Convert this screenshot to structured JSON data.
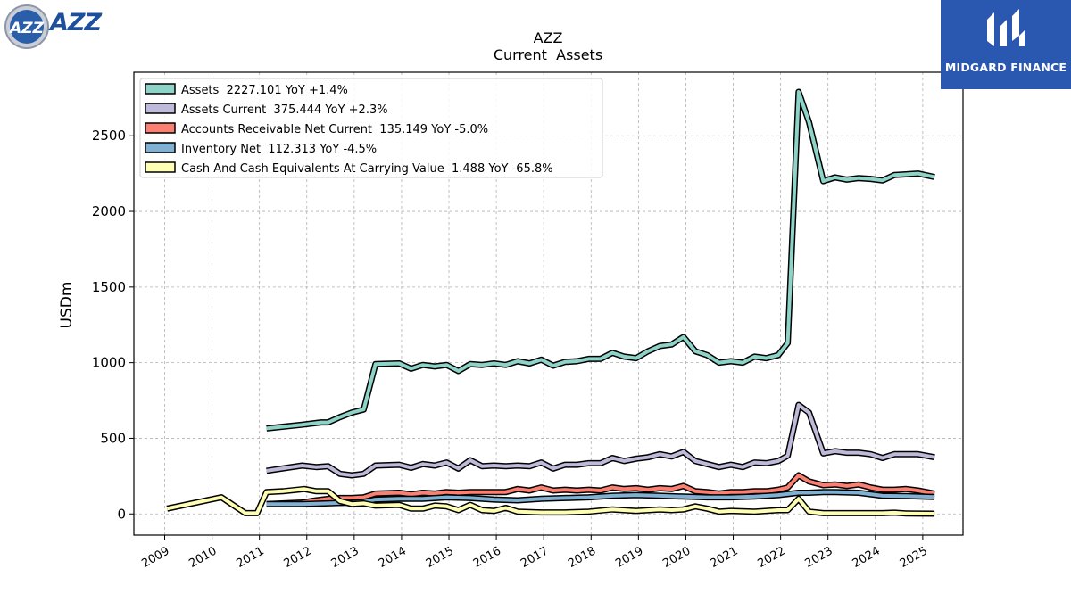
{
  "branding": {
    "company_logo_text": "AZZ",
    "company_logo_badge_text": "AZZ",
    "watermark_text": "MIDGARD FINANCE"
  },
  "colors": {
    "assets": "#8dd3c7",
    "assets_current": "#bebada",
    "receivables": "#fb8072",
    "inventory": "#80b1d3",
    "cash": "#ffffb3",
    "outline": "#000000",
    "grid": "#b0b0b0",
    "brand_blue": "#2a57b0",
    "azz_blue": "#1d4f9c"
  },
  "chart_data": {
    "type": "line",
    "title": "AZZ",
    "subtitle": "Current  Assets",
    "xlabel": "",
    "ylabel": "USDm",
    "xlim": [
      2008.35,
      2025.85
    ],
    "ylim": [
      -140,
      2920
    ],
    "yticks": [
      0,
      500,
      1000,
      1500,
      2000,
      2500
    ],
    "xticks": [
      "2009",
      "2010",
      "2011",
      "2012",
      "2013",
      "2014",
      "2015",
      "2016",
      "2017",
      "2018",
      "2019",
      "2020",
      "2021",
      "2022",
      "2023",
      "2024",
      "2025"
    ],
    "grid": true,
    "legend_position": "top-left",
    "legend": [
      "Assets  2227.101 YoY +1.4%",
      "Assets Current  375.444 YoY +2.3%",
      "Accounts Receivable Net Current  135.149 YoY -5.0%",
      "Inventory Net  112.313 YoY -4.5%",
      "Cash And Cash Equivalents At Carrying Value  1.488 YoY -65.8%"
    ],
    "series": [
      {
        "name": "Assets",
        "color": "#8dd3c7",
        "points": [
          [
            2011.15,
            565
          ],
          [
            2011.9,
            590
          ],
          [
            2012.3,
            605
          ],
          [
            2012.45,
            605
          ],
          [
            2012.7,
            640
          ],
          [
            2012.95,
            670
          ],
          [
            2013.2,
            690
          ],
          [
            2013.45,
            990
          ],
          [
            2013.95,
            995
          ],
          [
            2014.2,
            960
          ],
          [
            2014.45,
            985
          ],
          [
            2014.7,
            975
          ],
          [
            2014.95,
            985
          ],
          [
            2015.2,
            945
          ],
          [
            2015.45,
            990
          ],
          [
            2015.7,
            985
          ],
          [
            2015.95,
            995
          ],
          [
            2016.2,
            985
          ],
          [
            2016.45,
            1010
          ],
          [
            2016.7,
            995
          ],
          [
            2016.95,
            1020
          ],
          [
            2017.2,
            980
          ],
          [
            2017.45,
            1005
          ],
          [
            2017.7,
            1010
          ],
          [
            2017.95,
            1025
          ],
          [
            2018.2,
            1025
          ],
          [
            2018.45,
            1065
          ],
          [
            2018.7,
            1040
          ],
          [
            2018.95,
            1030
          ],
          [
            2019.2,
            1075
          ],
          [
            2019.45,
            1110
          ],
          [
            2019.7,
            1120
          ],
          [
            2019.95,
            1170
          ],
          [
            2020.2,
            1075
          ],
          [
            2020.45,
            1050
          ],
          [
            2020.7,
            1000
          ],
          [
            2020.95,
            1010
          ],
          [
            2021.2,
            1000
          ],
          [
            2021.45,
            1040
          ],
          [
            2021.7,
            1030
          ],
          [
            2021.95,
            1050
          ],
          [
            2022.15,
            1130
          ],
          [
            2022.38,
            2790
          ],
          [
            2022.6,
            2590
          ],
          [
            2022.9,
            2200
          ],
          [
            2023.15,
            2225
          ],
          [
            2023.4,
            2210
          ],
          [
            2023.65,
            2220
          ],
          [
            2023.9,
            2215
          ],
          [
            2024.15,
            2205
          ],
          [
            2024.4,
            2240
          ],
          [
            2024.9,
            2250
          ],
          [
            2025.25,
            2227
          ]
        ]
      },
      {
        "name": "Assets Current",
        "color": "#bebada",
        "points": [
          [
            2011.15,
            285
          ],
          [
            2011.9,
            320
          ],
          [
            2012.2,
            310
          ],
          [
            2012.45,
            315
          ],
          [
            2012.7,
            265
          ],
          [
            2012.95,
            255
          ],
          [
            2013.2,
            265
          ],
          [
            2013.45,
            320
          ],
          [
            2013.95,
            325
          ],
          [
            2014.2,
            305
          ],
          [
            2014.45,
            330
          ],
          [
            2014.7,
            320
          ],
          [
            2014.95,
            340
          ],
          [
            2015.2,
            300
          ],
          [
            2015.45,
            355
          ],
          [
            2015.7,
            315
          ],
          [
            2015.95,
            320
          ],
          [
            2016.2,
            315
          ],
          [
            2016.45,
            320
          ],
          [
            2016.7,
            315
          ],
          [
            2016.95,
            340
          ],
          [
            2017.2,
            300
          ],
          [
            2017.45,
            325
          ],
          [
            2017.7,
            325
          ],
          [
            2017.95,
            335
          ],
          [
            2018.2,
            335
          ],
          [
            2018.45,
            370
          ],
          [
            2018.7,
            350
          ],
          [
            2018.95,
            365
          ],
          [
            2019.2,
            375
          ],
          [
            2019.45,
            395
          ],
          [
            2019.7,
            380
          ],
          [
            2019.95,
            410
          ],
          [
            2020.2,
            350
          ],
          [
            2020.45,
            330
          ],
          [
            2020.7,
            310
          ],
          [
            2020.95,
            325
          ],
          [
            2021.2,
            310
          ],
          [
            2021.45,
            340
          ],
          [
            2021.7,
            335
          ],
          [
            2021.95,
            350
          ],
          [
            2022.15,
            385
          ],
          [
            2022.38,
            720
          ],
          [
            2022.6,
            670
          ],
          [
            2022.9,
            400
          ],
          [
            2023.15,
            415
          ],
          [
            2023.4,
            405
          ],
          [
            2023.65,
            405
          ],
          [
            2023.9,
            395
          ],
          [
            2024.15,
            370
          ],
          [
            2024.4,
            395
          ],
          [
            2024.9,
            395
          ],
          [
            2025.25,
            375
          ]
        ]
      },
      {
        "name": "Accounts Receivable Net Current",
        "color": "#fb8072",
        "points": [
          [
            2011.15,
            65
          ],
          [
            2011.9,
            75
          ],
          [
            2012.2,
            90
          ],
          [
            2012.45,
            100
          ],
          [
            2012.7,
            105
          ],
          [
            2012.95,
            105
          ],
          [
            2013.2,
            110
          ],
          [
            2013.45,
            135
          ],
          [
            2013.95,
            140
          ],
          [
            2014.2,
            130
          ],
          [
            2014.45,
            140
          ],
          [
            2014.7,
            135
          ],
          [
            2014.95,
            145
          ],
          [
            2015.2,
            140
          ],
          [
            2015.45,
            145
          ],
          [
            2015.7,
            145
          ],
          [
            2015.95,
            145
          ],
          [
            2016.2,
            145
          ],
          [
            2016.45,
            165
          ],
          [
            2016.7,
            155
          ],
          [
            2016.95,
            175
          ],
          [
            2017.2,
            155
          ],
          [
            2017.45,
            160
          ],
          [
            2017.7,
            155
          ],
          [
            2017.95,
            160
          ],
          [
            2018.2,
            155
          ],
          [
            2018.45,
            175
          ],
          [
            2018.7,
            165
          ],
          [
            2018.95,
            170
          ],
          [
            2019.2,
            160
          ],
          [
            2019.45,
            170
          ],
          [
            2019.7,
            165
          ],
          [
            2019.95,
            185
          ],
          [
            2020.2,
            150
          ],
          [
            2020.45,
            145
          ],
          [
            2020.7,
            135
          ],
          [
            2020.95,
            145
          ],
          [
            2021.2,
            145
          ],
          [
            2021.45,
            150
          ],
          [
            2021.7,
            150
          ],
          [
            2021.95,
            160
          ],
          [
            2022.15,
            175
          ],
          [
            2022.38,
            255
          ],
          [
            2022.6,
            215
          ],
          [
            2022.9,
            190
          ],
          [
            2023.15,
            195
          ],
          [
            2023.4,
            185
          ],
          [
            2023.65,
            195
          ],
          [
            2023.9,
            175
          ],
          [
            2024.15,
            160
          ],
          [
            2024.4,
            160
          ],
          [
            2024.65,
            165
          ],
          [
            2024.9,
            155
          ],
          [
            2025.25,
            135
          ]
        ]
      },
      {
        "name": "Inventory Net",
        "color": "#80b1d3",
        "points": [
          [
            2011.15,
            65
          ],
          [
            2011.9,
            65
          ],
          [
            2012.45,
            70
          ],
          [
            2012.95,
            75
          ],
          [
            2013.2,
            80
          ],
          [
            2013.45,
            95
          ],
          [
            2013.95,
            100
          ],
          [
            2014.45,
            100
          ],
          [
            2014.95,
            110
          ],
          [
            2015.45,
            105
          ],
          [
            2015.95,
            95
          ],
          [
            2016.45,
            90
          ],
          [
            2016.95,
            100
          ],
          [
            2017.45,
            105
          ],
          [
            2017.95,
            110
          ],
          [
            2018.45,
            120
          ],
          [
            2018.95,
            125
          ],
          [
            2019.45,
            120
          ],
          [
            2019.95,
            115
          ],
          [
            2020.45,
            110
          ],
          [
            2020.95,
            110
          ],
          [
            2021.45,
            115
          ],
          [
            2021.95,
            125
          ],
          [
            2022.38,
            140
          ],
          [
            2022.6,
            140
          ],
          [
            2022.9,
            145
          ],
          [
            2023.15,
            145
          ],
          [
            2023.65,
            140
          ],
          [
            2024.15,
            120
          ],
          [
            2024.65,
            118
          ],
          [
            2025.25,
            112
          ]
        ]
      },
      {
        "name": "Cash And Cash Equivalents At Carrying Value",
        "color": "#ffffb3",
        "points": [
          [
            2009.05,
            35
          ],
          [
            2010.2,
            110
          ],
          [
            2010.7,
            5
          ],
          [
            2010.95,
            5
          ],
          [
            2011.15,
            145
          ],
          [
            2011.5,
            150
          ],
          [
            2011.95,
            165
          ],
          [
            2012.2,
            150
          ],
          [
            2012.45,
            150
          ],
          [
            2012.7,
            85
          ],
          [
            2012.95,
            65
          ],
          [
            2013.2,
            70
          ],
          [
            2013.45,
            55
          ],
          [
            2013.95,
            60
          ],
          [
            2014.2,
            35
          ],
          [
            2014.45,
            35
          ],
          [
            2014.7,
            55
          ],
          [
            2014.95,
            50
          ],
          [
            2015.2,
            25
          ],
          [
            2015.45,
            60
          ],
          [
            2015.7,
            25
          ],
          [
            2015.95,
            20
          ],
          [
            2016.2,
            40
          ],
          [
            2016.45,
            15
          ],
          [
            2016.95,
            10
          ],
          [
            2017.45,
            10
          ],
          [
            2017.95,
            15
          ],
          [
            2018.45,
            30
          ],
          [
            2018.95,
            20
          ],
          [
            2019.45,
            30
          ],
          [
            2019.7,
            25
          ],
          [
            2019.95,
            30
          ],
          [
            2020.2,
            50
          ],
          [
            2020.45,
            35
          ],
          [
            2020.7,
            15
          ],
          [
            2020.95,
            20
          ],
          [
            2021.45,
            15
          ],
          [
            2021.95,
            25
          ],
          [
            2022.15,
            25
          ],
          [
            2022.38,
            100
          ],
          [
            2022.6,
            15
          ],
          [
            2022.9,
            5
          ],
          [
            2023.15,
            5
          ],
          [
            2023.65,
            5
          ],
          [
            2023.9,
            5
          ],
          [
            2024.15,
            5
          ],
          [
            2024.4,
            8
          ],
          [
            2024.65,
            3
          ],
          [
            2024.9,
            2
          ],
          [
            2025.25,
            1.5
          ]
        ]
      }
    ]
  }
}
